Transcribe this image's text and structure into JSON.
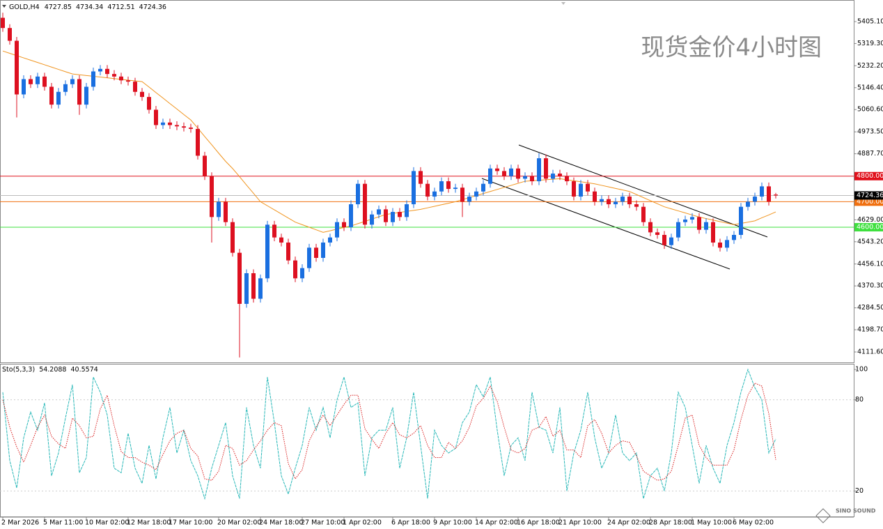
{
  "chart_data": {
    "type": "candlestick",
    "symbol": "GOLD,H4",
    "title": "现货金价4小时图",
    "watermark": "SINO SOUND",
    "up_color": "#1a6fe0",
    "down_color": "#dd1020",
    "categories": [
      "2 Mar 2026",
      null,
      null,
      null,
      null,
      null,
      "5 Mar 11:00",
      null,
      null,
      null,
      null,
      null,
      "10 Mar 02:00",
      null,
      null,
      null,
      null,
      null,
      "12 Mar 18:00",
      null,
      null,
      null,
      null,
      null,
      "17 Mar 10:00",
      null,
      null,
      null,
      null,
      null,
      null,
      "20 Mar 02:00",
      null,
      null,
      null,
      null,
      null,
      "24 Mar 18:00",
      null,
      null,
      null,
      null,
      null,
      "27 Mar 10:00",
      null,
      null,
      null,
      null,
      null,
      "1 Apr 02:00",
      null,
      null,
      null,
      null,
      null,
      null,
      "6 Apr 18:00",
      null,
      null,
      null,
      null,
      null,
      "9 Apr 10:00",
      null,
      null,
      null,
      null,
      null,
      "14 Apr 02:00",
      null,
      null,
      null,
      null,
      null,
      "16 Apr 18:00",
      null,
      null,
      null,
      null,
      null,
      "21 Apr 10:00",
      null,
      null,
      null,
      null,
      null,
      null,
      "24 Apr 02:00",
      null,
      null,
      null,
      null,
      null,
      "28 Apr 18:00",
      null,
      null,
      null,
      null,
      null,
      "1 May 10:00",
      null,
      null,
      null,
      null,
      null,
      "6 May 02:00",
      null,
      null,
      null,
      null,
      null,
      null
    ],
    "open": [
      5420,
      5380,
      5330,
      5120,
      5180,
      5160,
      5190,
      5150,
      5080,
      5130,
      5160,
      5180,
      5080,
      5150,
      5210,
      5220,
      5200,
      5190,
      5175,
      5170,
      5130,
      5110,
      5060,
      5000,
      5010,
      5000,
      4995,
      4990,
      4985,
      4880,
      4800,
      4640,
      4700,
      4620,
      4500,
      4300,
      4420,
      4320,
      4400,
      4610,
      4560,
      4540,
      4470,
      4400,
      4440,
      4520,
      4480,
      4540,
      4560,
      4620,
      4600,
      4690,
      4770,
      4610,
      4650,
      4670,
      4620,
      4660,
      4640,
      4690,
      4820,
      4770,
      4720,
      4740,
      4780,
      4750,
      4755,
      4700,
      4720,
      4740,
      4770,
      4830,
      4820,
      4800,
      4830,
      4790,
      4800,
      4780,
      4870,
      4790,
      4810,
      4800,
      4780,
      4720,
      4770,
      4740,
      4700,
      4710,
      4690,
      4700,
      4720,
      4690,
      4680,
      4620,
      4580,
      4570,
      4530,
      4560,
      4620,
      4630,
      4640,
      4590,
      4620,
      4540,
      4520,
      4550,
      4570,
      4680,
      4700,
      4720,
      4760,
      4727.85
    ],
    "high": [
      5440,
      5395,
      5345,
      5195,
      5195,
      5205,
      5205,
      5165,
      5145,
      5175,
      5195,
      5195,
      5165,
      5225,
      5235,
      5235,
      5215,
      5205,
      5190,
      5185,
      5145,
      5125,
      5075,
      5025,
      5025,
      5015,
      5010,
      5005,
      5000,
      4895,
      4815,
      4715,
      4715,
      4635,
      4515,
      4435,
      4435,
      4415,
      4625,
      4625,
      4575,
      4555,
      4485,
      4455,
      4535,
      4535,
      4555,
      4575,
      4635,
      4635,
      4705,
      4785,
      4785,
      4665,
      4685,
      4685,
      4675,
      4675,
      4705,
      4835,
      4835,
      4785,
      4755,
      4795,
      4795,
      4770,
      4770,
      4735,
      4755,
      4785,
      4845,
      4845,
      4835,
      4845,
      4845,
      4815,
      4815,
      4890,
      4885,
      4825,
      4825,
      4815,
      4795,
      4785,
      4785,
      4755,
      4725,
      4725,
      4715,
      4735,
      4735,
      4705,
      4695,
      4635,
      4595,
      4585,
      4575,
      4635,
      4645,
      4655,
      4655,
      4635,
      4635,
      4555,
      4565,
      4585,
      4695,
      4715,
      4735,
      4775,
      4775,
      4734.34
    ],
    "low": [
      5365,
      5315,
      5030,
      5105,
      5145,
      5145,
      5135,
      5065,
      5065,
      5115,
      5145,
      5040,
      5065,
      5135,
      5195,
      5185,
      5175,
      5160,
      5155,
      5115,
      5095,
      5045,
      4985,
      4985,
      4985,
      4980,
      4975,
      4970,
      4865,
      4785,
      4540,
      4625,
      4605,
      4485,
      4090,
      4285,
      4305,
      4305,
      4385,
      4545,
      4525,
      4455,
      4385,
      4385,
      4425,
      4465,
      4465,
      4525,
      4545,
      4585,
      4585,
      4675,
      4595,
      4595,
      4635,
      4605,
      4605,
      4625,
      4625,
      4675,
      4755,
      4705,
      4705,
      4725,
      4735,
      4735,
      4640,
      4685,
      4705,
      4725,
      4755,
      4805,
      4785,
      4785,
      4775,
      4775,
      4765,
      4765,
      4775,
      4775,
      4785,
      4765,
      4705,
      4705,
      4725,
      4685,
      4685,
      4675,
      4675,
      4685,
      4675,
      4665,
      4605,
      4565,
      4555,
      4515,
      4515,
      4545,
      4605,
      4615,
      4575,
      4575,
      4525,
      4505,
      4505,
      4535,
      4555,
      4665,
      4685,
      4705,
      4685,
      4712.51
    ],
    "close": [
      5380,
      5330,
      5120,
      5180,
      5160,
      5190,
      5150,
      5080,
      5130,
      5160,
      5180,
      5080,
      5150,
      5210,
      5220,
      5200,
      5190,
      5175,
      5170,
      5130,
      5110,
      5060,
      5000,
      5010,
      5000,
      4995,
      4990,
      4985,
      4880,
      4800,
      4640,
      4700,
      4620,
      4500,
      4300,
      4420,
      4320,
      4400,
      4610,
      4560,
      4540,
      4470,
      4400,
      4440,
      4520,
      4480,
      4540,
      4560,
      4620,
      4600,
      4690,
      4770,
      4610,
      4650,
      4670,
      4620,
      4660,
      4640,
      4690,
      4820,
      4770,
      4720,
      4740,
      4780,
      4750,
      4755,
      4700,
      4720,
      4740,
      4770,
      4830,
      4820,
      4800,
      4830,
      4790,
      4800,
      4780,
      4870,
      4790,
      4810,
      4800,
      4780,
      4720,
      4770,
      4740,
      4700,
      4710,
      4690,
      4700,
      4720,
      4690,
      4680,
      4620,
      4580,
      4570,
      4530,
      4560,
      4620,
      4630,
      4640,
      4590,
      4620,
      4540,
      4520,
      4550,
      4570,
      4680,
      4700,
      4720,
      4760,
      4700,
      4724.36
    ],
    "ma": {
      "color": "#f0941e",
      "values": [
        5290,
        5281,
        5272,
        5263,
        5254,
        5245,
        5236,
        5227,
        5218,
        5209,
        5200,
        5197,
        5194,
        5191,
        5188,
        5185,
        5182,
        5179,
        5176,
        5173,
        5170,
        5149,
        5127,
        5106,
        5084,
        5063,
        5041,
        5020,
        4988,
        4955,
        4923,
        4890,
        4858,
        4830,
        4798,
        4765,
        4733,
        4700,
        4684,
        4668,
        4652,
        4636,
        4620,
        4610,
        4600,
        4590,
        4580,
        4586,
        4593,
        4599,
        4605,
        4614,
        4623,
        4632,
        4641,
        4650,
        4654,
        4658,
        4662,
        4666,
        4670,
        4676,
        4682,
        4688,
        4694,
        4700,
        4708,
        4716,
        4724,
        4732,
        4740,
        4748,
        4756,
        4764,
        4772,
        4780,
        4782,
        4784,
        4786,
        4788,
        4790,
        4786,
        4782,
        4778,
        4774,
        4770,
        4764,
        4758,
        4752,
        4746,
        4740,
        4728,
        4716,
        4704,
        4692,
        4680,
        4672,
        4664,
        4656,
        4648,
        4640,
        4634,
        4628,
        4622,
        4616,
        4610,
        4615,
        4620,
        4625,
        4637,
        4648,
        4660
      ]
    },
    "ylim": [
      4070.7,
      5484.2
    ],
    "yticks": [
      {
        "value": 5405.1,
        "label": "5405.10"
      },
      {
        "value": 5319.3,
        "label": "5319.30"
      },
      {
        "value": 5232.2,
        "label": "5232.20"
      },
      {
        "value": 5146.4,
        "label": "5146.40"
      },
      {
        "value": 5060.6,
        "label": "5060.60"
      },
      {
        "value": 4973.5,
        "label": "4973.50"
      },
      {
        "value": 4887.7,
        "label": "4887.70"
      },
      {
        "value": 4629,
        "label": "4629.00"
      },
      {
        "value": 4543.2,
        "label": "4543.20"
      },
      {
        "value": 4456.1,
        "label": "4456.10"
      },
      {
        "value": 4370.3,
        "label": "4370.30"
      },
      {
        "value": 4284.5,
        "label": "4284.50"
      },
      {
        "value": 4198.7,
        "label": "4198.70"
      },
      {
        "value": 4111.6,
        "label": "4111.60"
      }
    ],
    "levels": [
      {
        "value": 4800,
        "label": "4800.00",
        "color": "#e0101a"
      },
      {
        "value": 4700,
        "label": "4700.00",
        "color": "#f07010"
      },
      {
        "value": 4600,
        "label": "4600.00",
        "color": "#3ee03e"
      }
    ],
    "indicator": {
      "label": "Sto(5,3,3)",
      "ylim": [
        3.7,
        103.7
      ],
      "yticks": [
        100,
        80,
        20
      ],
      "levels": [
        80,
        20
      ],
      "series": [
        {
          "color": "#28b8b8",
          "values": [
            85,
            40,
            22,
            55,
            72,
            60,
            78,
            30,
            45,
            68,
            90,
            32,
            42,
            95,
            85,
            70,
            35,
            32,
            58,
            35,
            25,
            50,
            28,
            55,
            75,
            45,
            60,
            40,
            30,
            15,
            35,
            50,
            65,
            30,
            15,
            75,
            50,
            35,
            95,
            65,
            30,
            18,
            35,
            50,
            75,
            60,
            75,
            55,
            80,
            95,
            75,
            78,
            30,
            55,
            60,
            60,
            75,
            35,
            55,
            85,
            50,
            15,
            60,
            50,
            45,
            48,
            65,
            72,
            90,
            82,
            95,
            60,
            30,
            50,
            55,
            40,
            85,
            62,
            60,
            45,
            75,
            20,
            45,
            60,
            85,
            55,
            35,
            45,
            70,
            45,
            40,
            45,
            15,
            30,
            35,
            20,
            45,
            85,
            75,
            50,
            25,
            50,
            35,
            25,
            50,
            65,
            85,
            100,
            88,
            80,
            45,
            54.2088
          ]
        },
        {
          "color": "#d81818",
          "values": [
            80,
            62,
            49,
            39,
            50,
            62,
            70,
            56,
            51,
            48,
            68,
            63,
            55,
            56,
            74,
            83,
            63,
            46,
            42,
            42,
            39,
            37,
            34,
            44,
            53,
            58,
            60,
            48,
            43,
            28,
            27,
            33,
            50,
            48,
            37,
            40,
            47,
            53,
            60,
            65,
            63,
            38,
            28,
            34,
            53,
            62,
            70,
            63,
            70,
            77,
            83,
            83,
            61,
            54,
            48,
            58,
            65,
            57,
            55,
            58,
            63,
            50,
            42,
            42,
            52,
            48,
            53,
            62,
            76,
            81,
            89,
            79,
            62,
            47,
            45,
            48,
            60,
            62,
            69,
            56,
            60,
            47,
            47,
            42,
            63,
            67,
            58,
            45,
            50,
            53,
            52,
            43,
            33,
            30,
            27,
            28,
            33,
            50,
            68,
            70,
            50,
            42,
            37,
            37,
            37,
            47,
            67,
            83,
            91,
            89,
            71,
            40.5574
          ]
        }
      ]
    }
  }
}
